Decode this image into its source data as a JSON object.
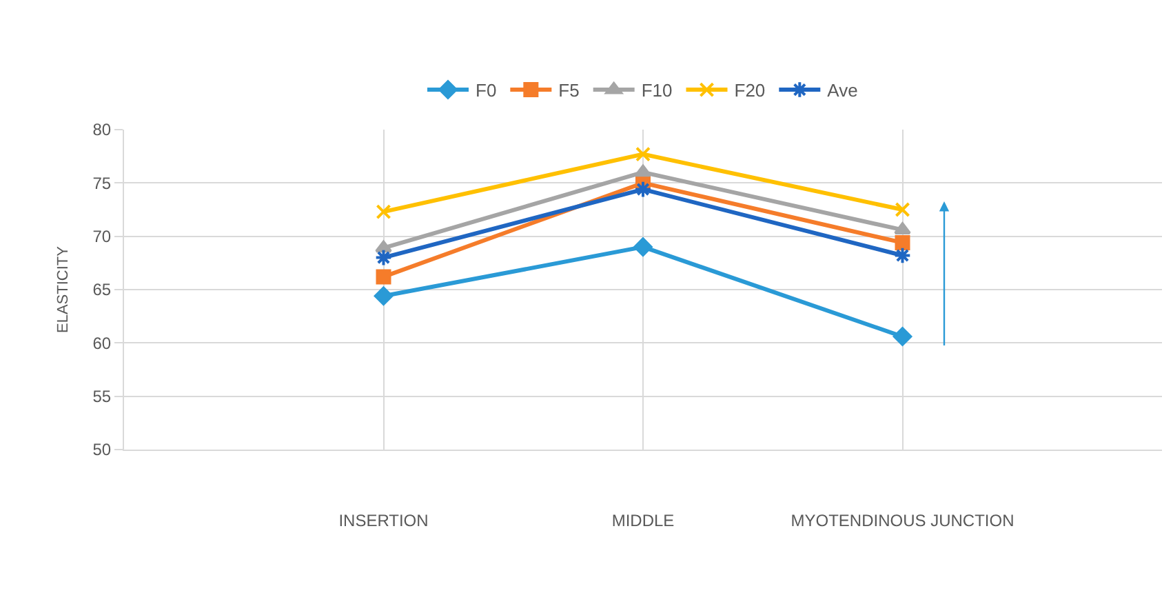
{
  "chart_data": {
    "type": "line",
    "ylabel": "ELASTICITY",
    "categories": [
      "INSERTION",
      "MIDDLE",
      "MYOTENDINOUS JUNCTION"
    ],
    "series": [
      {
        "name": "F0",
        "color": "#2a9ad6",
        "marker": "diamond",
        "values": [
          64.4,
          69.0,
          60.6
        ]
      },
      {
        "name": "F5",
        "color": "#f57c2a",
        "marker": "square",
        "values": [
          66.2,
          75.0,
          69.4
        ]
      },
      {
        "name": "F10",
        "color": "#a5a5a5",
        "marker": "triangle",
        "values": [
          68.9,
          76.0,
          70.6
        ]
      },
      {
        "name": "F20",
        "color": "#ffc000",
        "marker": "cross",
        "values": [
          72.3,
          77.7,
          72.5
        ]
      },
      {
        "name": "Ave",
        "color": "#1f66c2",
        "marker": "cross",
        "values": [
          68.0,
          74.4,
          68.2
        ]
      }
    ],
    "ylim": [
      50,
      80
    ],
    "yticks": [
      50,
      55,
      60,
      65,
      70,
      75,
      80
    ],
    "grid": true,
    "legend": "top",
    "line_style": "solid"
  }
}
